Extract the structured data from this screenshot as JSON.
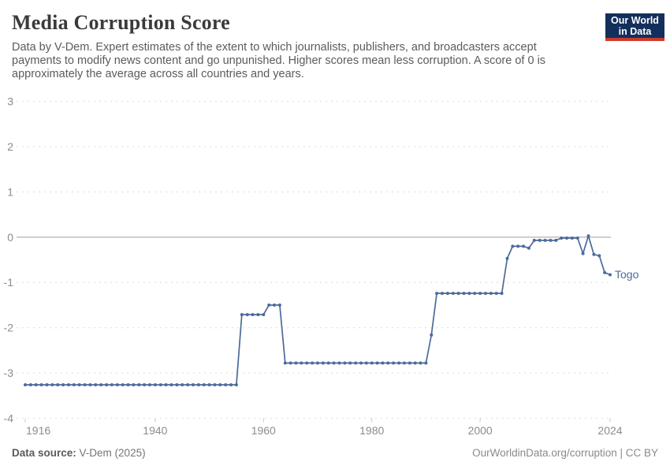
{
  "header": {
    "title": "Media Corruption Score",
    "subtitle": "Data by V-Dem. Expert estimates of the extent to which journalists, publishers, and broadcasters accept payments to modify news content and go unpunished. Higher scores mean less corruption. A score of 0 is approximately the average across all countries and years.",
    "logo": {
      "line1": "Our World",
      "line2": "in Data",
      "bg_color": "#132F5C",
      "stripe_color": "#CE392B"
    }
  },
  "chart_data": {
    "type": "line",
    "title": "Media Corruption Score",
    "entity": "Togo",
    "end_label": "Togo",
    "xlim": [
      1916,
      2024
    ],
    "ylim": [
      -4,
      3
    ],
    "x_ticks": [
      1916,
      1940,
      1960,
      1980,
      2000,
      2024
    ],
    "y_ticks": [
      3,
      2,
      1,
      0,
      -1,
      -2,
      -3,
      -4
    ],
    "grid": true,
    "legend_position": "end-of-line",
    "series": [
      {
        "name": "Togo",
        "color": "#4C6A9C",
        "step_segments": [
          {
            "start": 1916,
            "end": 1955,
            "value": -3.26
          },
          {
            "start": 1956,
            "end": 1960,
            "value": -1.71
          },
          {
            "start": 1961,
            "end": 1963,
            "value": -1.5
          },
          {
            "start": 1964,
            "end": 1990,
            "value": -2.78
          },
          {
            "start": 1991,
            "end": 1991,
            "value": -2.16
          },
          {
            "start": 1992,
            "end": 2004,
            "value": -1.24
          },
          {
            "start": 2005,
            "end": 2005,
            "value": -0.47
          },
          {
            "start": 2006,
            "end": 2008,
            "value": -0.2
          },
          {
            "start": 2009,
            "end": 2009,
            "value": -0.24
          },
          {
            "start": 2010,
            "end": 2014,
            "value": -0.07
          },
          {
            "start": 2015,
            "end": 2018,
            "value": -0.02
          },
          {
            "start": 2019,
            "end": 2019,
            "value": -0.36
          },
          {
            "start": 2020,
            "end": 2020,
            "value": 0.03
          },
          {
            "start": 2021,
            "end": 2021,
            "value": -0.38
          },
          {
            "start": 2022,
            "end": 2022,
            "value": -0.41
          },
          {
            "start": 2023,
            "end": 2023,
            "value": -0.78
          },
          {
            "start": 2024,
            "end": 2024,
            "value": -0.83
          }
        ]
      }
    ],
    "theme": {
      "gridline_color": "#DCDCDC",
      "zero_line_color": "#9E9E9E",
      "tick_label_color": "#8C8C8C",
      "tick_mark_color": "#C8C8C8"
    }
  },
  "footer": {
    "source_label": "Data source:",
    "source_value": "V-Dem (2025)",
    "rights": "OurWorldinData.org/corruption | CC BY"
  }
}
